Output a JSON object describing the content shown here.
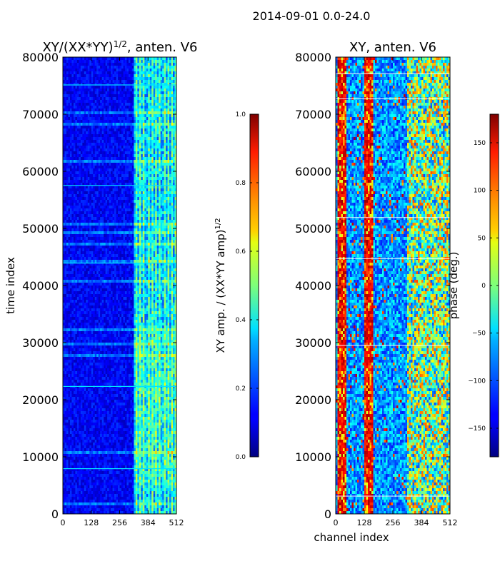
{
  "figure": {
    "suptitle": "2014-09-01 0.0-24.0"
  },
  "chart_data": [
    {
      "type": "heatmap",
      "title_prefix": "XY/(XX*YY)",
      "title_exponent": "1/2",
      "title_suffix": ", anten. V6",
      "xlabel": "",
      "ylabel": "time index",
      "xlim": [
        0,
        512
      ],
      "ylim": [
        0,
        80000
      ],
      "x_ticks": [
        0,
        128,
        256,
        384,
        512
      ],
      "y_ticks": [
        0,
        10000,
        20000,
        30000,
        40000,
        50000,
        60000,
        70000,
        80000
      ],
      "colormap": "jet",
      "value_range": [
        0.0,
        1.0
      ],
      "colorbar": {
        "label_prefix": "XY amp. / (XX*YY amp)",
        "label_exponent": "1/2",
        "ticks": [
          "0.0",
          "0.2",
          "0.4",
          "0.6",
          "0.8",
          "1.0"
        ],
        "tick_values": [
          0.0,
          0.2,
          0.4,
          0.6,
          0.8,
          1.0
        ],
        "range": [
          0.0,
          1.0
        ]
      }
    },
    {
      "type": "heatmap",
      "title": "XY, anten. V6",
      "xlabel": "channel index",
      "ylabel": "",
      "xlim": [
        0,
        512
      ],
      "ylim": [
        0,
        80000
      ],
      "x_ticks": [
        0,
        128,
        256,
        384,
        512
      ],
      "y_ticks": [
        0,
        10000,
        20000,
        30000,
        40000,
        50000,
        60000,
        70000,
        80000
      ],
      "colormap": "jet",
      "value_range": [
        -180,
        180
      ],
      "colorbar": {
        "label": "phase (deg.)",
        "ticks": [
          "150",
          "100",
          "50",
          "0",
          "−50",
          "−100",
          "−150"
        ],
        "tick_values": [
          150,
          100,
          50,
          0,
          -50,
          -100,
          -150
        ],
        "range": [
          -180,
          180
        ]
      }
    }
  ]
}
